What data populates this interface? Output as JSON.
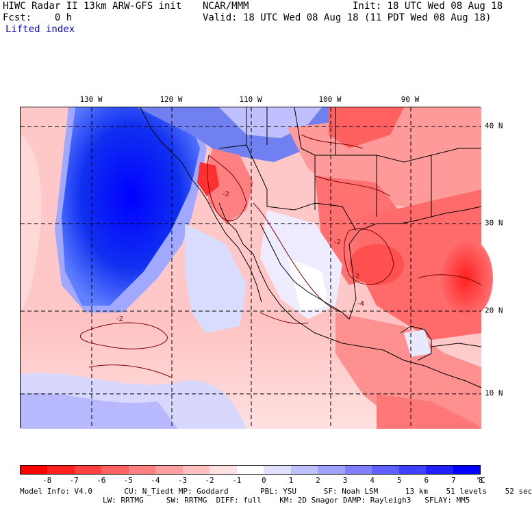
{
  "header": {
    "line1_left": "HIWC Radar II 13km ARW-GFS init",
    "line1_center": "NCAR/MMM",
    "line1_right": "Init: 18 UTC Wed 08 Aug 18",
    "line2_left": "Fcst:    0 h",
    "line2_right": "Valid: 18 UTC Wed 08 Aug 18 (11 PDT Wed 08 Aug 18)",
    "line3": "Lifted index"
  },
  "map": {
    "lon_labels": [
      "130 W",
      "120 W",
      "110 W",
      "100 W",
      "90 W"
    ],
    "lat_labels": [
      "40 N",
      "30 N",
      "20 N",
      "10 N"
    ],
    "contour_labels": [
      "-2",
      "-2",
      "-2",
      "-2",
      "-4"
    ]
  },
  "colorbar": {
    "colors": [
      "#ff0000",
      "#ff2020",
      "#ff4040",
      "#ff6060",
      "#ff8080",
      "#ffa0a0",
      "#ffc0c0",
      "#ffe0e0",
      "#ffffff",
      "#e0e0ff",
      "#c0c0ff",
      "#a0a0ff",
      "#8080ff",
      "#6060ff",
      "#4040ff",
      "#2020ff",
      "#0000ff"
    ],
    "ticks": [
      "-8",
      "-7",
      "-6",
      "-5",
      "-4",
      "-3",
      "-2",
      "-1",
      "0",
      "1",
      "2",
      "3",
      "4",
      "5",
      "6",
      "7",
      "8"
    ],
    "unit": "°C"
  },
  "footer": {
    "line1": "Model Info: V4.0       CU: N_Tiedt MP: Goddard       PBL: YSU      SF: Noah LSM      13 km    51 levels    52 sec",
    "line2": "LW: RRTMG     SW: RRTMG  DIFF: full    KM: 2D Smagor DAMP: Rayleigh3   SFLAY: MM5"
  }
}
